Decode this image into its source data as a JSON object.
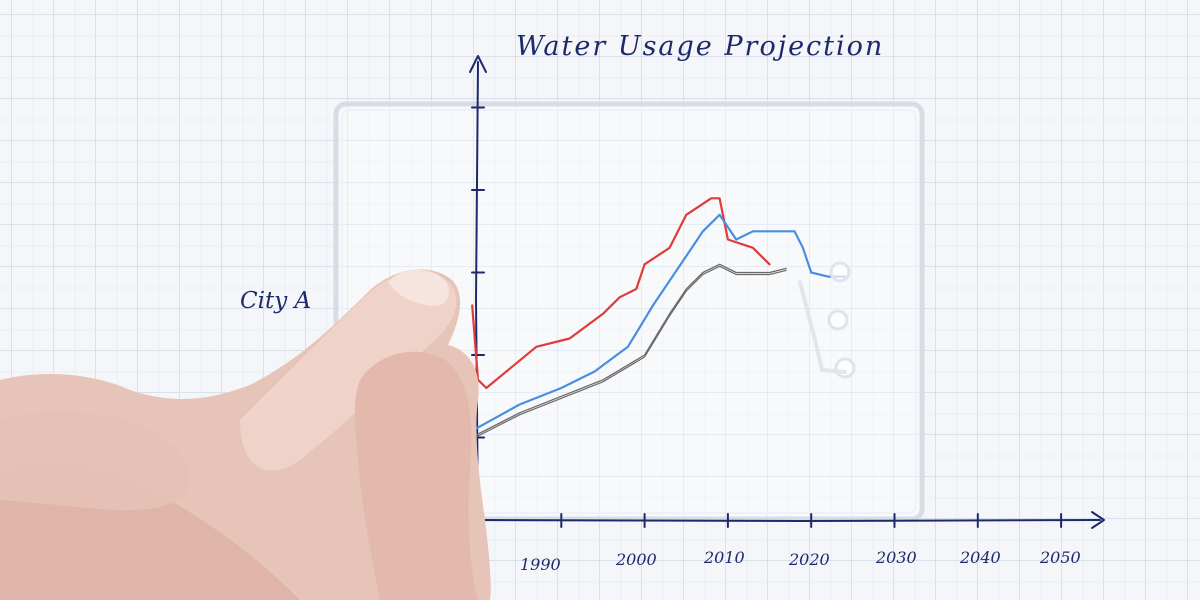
{
  "chart_data": {
    "type": "line",
    "title": "Water Usage Projection",
    "series_label": "City A",
    "x_ticks": [
      "1990",
      "2000",
      "2010",
      "2020",
      "2030",
      "2040",
      "2050"
    ],
    "xlim": [
      1980,
      2052
    ],
    "ylim": [
      0,
      5
    ],
    "colors": {
      "axis": "#1c2a6b",
      "red": "#e03a3a",
      "blue": "#4a8ee0",
      "grey": "#6a6a6a",
      "grid": "#c9d3e4",
      "overlay": "#e6e9ee",
      "skin": "#e9c9bd"
    },
    "series": [
      {
        "color": "red",
        "points": [
          [
            1979.3,
            2.6
          ],
          [
            1980,
            1.7
          ],
          [
            1981,
            1.6
          ],
          [
            1987,
            2.1
          ],
          [
            1991,
            2.2
          ],
          [
            1995,
            2.5
          ],
          [
            1997,
            2.7
          ],
          [
            1999,
            2.8
          ],
          [
            2000,
            3.1
          ],
          [
            2003,
            3.3
          ],
          [
            2005,
            3.7
          ],
          [
            2008,
            3.9
          ],
          [
            2009,
            3.9
          ],
          [
            2010,
            3.4
          ],
          [
            2013,
            3.3
          ],
          [
            2015,
            3.1
          ]
        ]
      },
      {
        "color": "blue",
        "points": [
          [
            1979.6,
            1.1
          ],
          [
            1985,
            1.4
          ],
          [
            1990,
            1.6
          ],
          [
            1994,
            1.8
          ],
          [
            1998,
            2.1
          ],
          [
            2001,
            2.6
          ],
          [
            2003,
            2.9
          ],
          [
            2005,
            3.2
          ],
          [
            2007,
            3.5
          ],
          [
            2009,
            3.7
          ],
          [
            2011,
            3.4
          ],
          [
            2013,
            3.5
          ],
          [
            2015,
            3.5
          ],
          [
            2017,
            3.5
          ],
          [
            2018,
            3.5
          ],
          [
            2019,
            3.3
          ],
          [
            2020,
            3.0
          ],
          [
            2022,
            2.95
          ],
          [
            2024,
            2.95
          ]
        ]
      },
      {
        "color": "grey",
        "points": [
          [
            1979.2,
            1.0
          ],
          [
            1985,
            1.3
          ],
          [
            1990,
            1.5
          ],
          [
            1995,
            1.7
          ],
          [
            2000,
            2.0
          ],
          [
            2003,
            2.5
          ],
          [
            2005,
            2.8
          ],
          [
            2007,
            3.0
          ],
          [
            2009,
            3.1
          ],
          [
            2011,
            3.0
          ],
          [
            2013,
            3.0
          ],
          [
            2015,
            3.0
          ],
          [
            2017,
            3.05
          ]
        ]
      }
    ]
  }
}
